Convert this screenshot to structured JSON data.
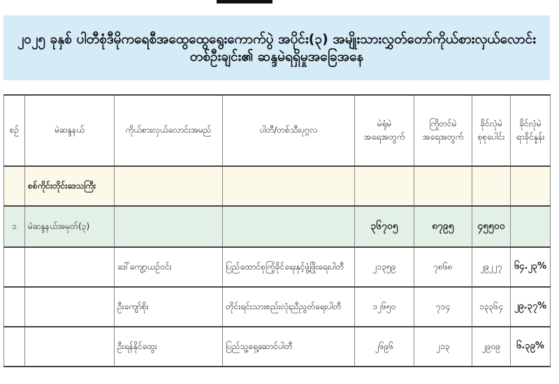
{
  "title": "၂၀၂၅ ခုနှစ် ပါတီစုံဒီမိုကရေစီအထွေထွေရွေးကောက်ပွဲ အပိုင်း(၃) အမျိုးသားလွှတ်တော်ကိုယ်စားလှယ်လောင်းတစ်ဦးချင်း၏ ဆန္ဒမဲရရှိမှုအခြေအနေ",
  "headers": {
    "serial": "စဉ်",
    "constituency": "မဲဆန္ဒနယ်",
    "candidate": "ကိုယ်စားလှယ်လောင်းအမည်",
    "party": "ပါတီ/တစ်သီးပုဂ္ဂလ",
    "poll_votes_1": "မဲရုံမဲ",
    "poll_votes_2": "အရေအတွက်",
    "advance_votes_1": "ကြိုတင်မဲ",
    "advance_votes_2": "အရေအတွက်",
    "valid_total_1": "ခိုင်လုံမဲ",
    "valid_total_2": "စုစုပေါင်း",
    "valid_pct_1": "ခိုင်လုံမဲ",
    "valid_pct_2": "ရာခိုင်နှုန်း"
  },
  "region": "စစ်ကိုင်းတိုင်းဒေသကြီး",
  "constituency_row": {
    "serial": "၁",
    "name": "မဲဆန္ဒနယ်အမှတ်(၃)",
    "poll_votes": "၃၆၇၀၅",
    "advance_votes": "၈၇၉၅",
    "valid_total": "၄၅၅၀၀"
  },
  "candidates": [
    {
      "name": "ဒေါ်ကျော့ယဉ်ဝင်း",
      "party": "ပြည်ထောင်စုကြံ့ခိုင်ရေးနှင့်ဖွံ့ဖြိုးရေးပါတီ",
      "poll_votes": "၂၁၃၅၉",
      "advance_votes": "၇၈၆၈",
      "valid_total": "၂၉၂၂၇",
      "valid_pct": "၆၄.၂၃%"
    },
    {
      "name": "ဦးကျော်စိုး",
      "party": "တိုင်းရင်းသားစည်းလုံးညီညွတ်ရေးပါတီ",
      "poll_votes": "၁၂၆၅၀",
      "advance_votes": "၇၁၄",
      "valid_total": "၁၃၃၆၄",
      "valid_pct": "၂၉.၃၇%"
    },
    {
      "name": "ဦးရန်နိုင်ထွေး",
      "party": "ပြည်သူ့ရှေ့ဆောင်ပါတီ",
      "poll_votes": "၂၆၉၆",
      "advance_votes": "၂၁၃",
      "valid_total": "၂၉၀၉",
      "valid_pct": "၆.၃၉%"
    }
  ]
}
